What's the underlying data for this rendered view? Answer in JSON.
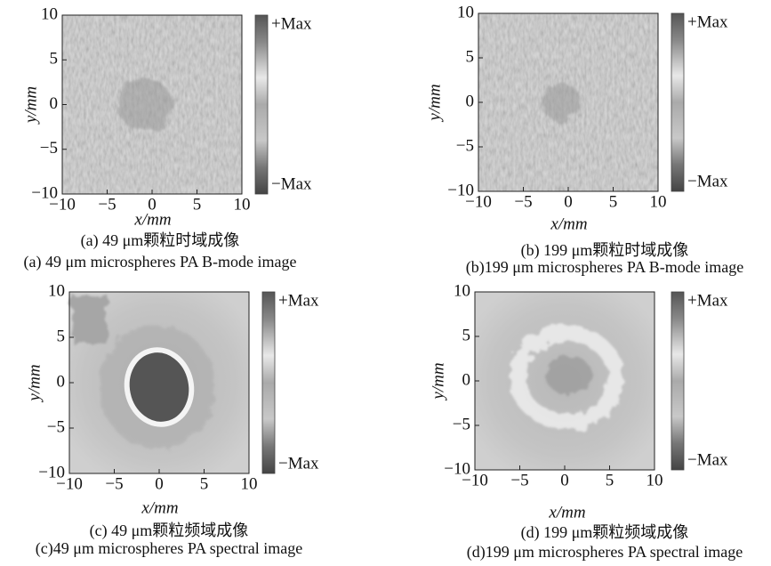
{
  "panels": [
    {
      "xlabel": "x/mm",
      "ylabel": "y/mm",
      "cbar_max": "+Max",
      "cbar_min": "−Max",
      "caption_zh": "(a) 49 μm颗粒时域成像",
      "caption_en": "(a) 49  μm microspheres PA B-mode image",
      "xlim": [
        -10,
        10
      ],
      "ylim": [
        -10,
        10
      ],
      "xticks": [
        {
          "value": -10,
          "label": "−10"
        },
        {
          "value": -5,
          "label": "−5"
        },
        0,
        5,
        10
      ],
      "yticks": [
        {
          "value": -10,
          "label": "−10"
        },
        {
          "value": -5,
          "label": "−5"
        },
        0,
        5,
        10
      ]
    },
    {
      "xlabel": "x/mm",
      "ylabel": "y/mm",
      "cbar_max": "+Max",
      "cbar_min": "−Max",
      "caption_zh": "(b) 199 μm颗粒时域成像",
      "caption_en": "(b)199 μm microspheres PA B-mode image",
      "xlim": [
        -10,
        10
      ],
      "ylim": [
        -10,
        10
      ],
      "xticks": [
        {
          "value": -10,
          "label": "−10"
        },
        {
          "value": -5,
          "label": "−5"
        },
        0,
        5,
        10
      ],
      "yticks": [
        {
          "value": -10,
          "label": "−10"
        },
        {
          "value": -5,
          "label": "−5"
        },
        0,
        5,
        10
      ]
    },
    {
      "xlabel": "x/mm",
      "ylabel": "y/mm",
      "cbar_max": "+Max",
      "cbar_min": "−Max",
      "caption_zh": "(c) 49 μm颗粒频域成像",
      "caption_en": "(c)49 μm microspheres PA spectral image",
      "xlim": [
        -10,
        10
      ],
      "ylim": [
        -10,
        10
      ],
      "xticks": [
        {
          "value": -10,
          "label": "−10"
        },
        {
          "value": -5,
          "label": "−5"
        },
        0,
        5,
        10
      ],
      "yticks": [
        {
          "value": -10,
          "label": "−10"
        },
        {
          "value": -5,
          "label": "−5"
        },
        0,
        5,
        10
      ]
    },
    {
      "xlabel": "x/mm",
      "ylabel": "y/mm",
      "cbar_max": "+Max",
      "cbar_min": "−Max",
      "caption_zh": "(d) 199 μm颗粒频域成像",
      "caption_en": "(d)199 μm microspheres PA spectral image",
      "xlim": [
        -10,
        10
      ],
      "ylim": [
        -10,
        10
      ],
      "xticks": [
        {
          "value": -10,
          "label": "−10"
        },
        {
          "value": -5,
          "label": "−5"
        },
        0,
        5,
        10
      ],
      "yticks": [
        {
          "value": -10,
          "label": "−10"
        },
        {
          "value": -5,
          "label": "−5"
        },
        0,
        5,
        10
      ]
    }
  ]
}
